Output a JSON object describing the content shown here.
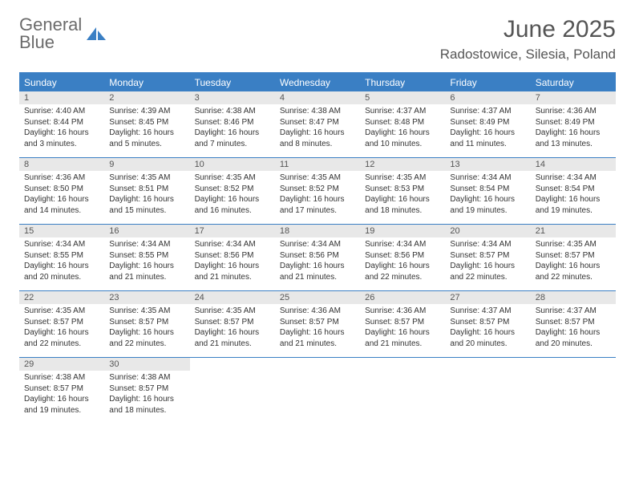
{
  "logo": {
    "word1": "General",
    "word2": "Blue",
    "word1_color": "#6b6b6b",
    "word2_color": "#3a7fc4",
    "icon_color": "#3a7fc4"
  },
  "title": "June 2025",
  "subtitle": "Radostowice, Silesia, Poland",
  "colors": {
    "header_bg": "#3a7fc4",
    "header_text": "#ffffff",
    "daynum_bg": "#e8e8e8",
    "daynum_text": "#555555",
    "body_text": "#333333",
    "border": "#3a7fc4",
    "page_bg": "#ffffff"
  },
  "day_headers": [
    "Sunday",
    "Monday",
    "Tuesday",
    "Wednesday",
    "Thursday",
    "Friday",
    "Saturday"
  ],
  "weeks": [
    [
      {
        "n": "1",
        "sr": "Sunrise: 4:40 AM",
        "ss": "Sunset: 8:44 PM",
        "dl": "Daylight: 16 hours and 3 minutes."
      },
      {
        "n": "2",
        "sr": "Sunrise: 4:39 AM",
        "ss": "Sunset: 8:45 PM",
        "dl": "Daylight: 16 hours and 5 minutes."
      },
      {
        "n": "3",
        "sr": "Sunrise: 4:38 AM",
        "ss": "Sunset: 8:46 PM",
        "dl": "Daylight: 16 hours and 7 minutes."
      },
      {
        "n": "4",
        "sr": "Sunrise: 4:38 AM",
        "ss": "Sunset: 8:47 PM",
        "dl": "Daylight: 16 hours and 8 minutes."
      },
      {
        "n": "5",
        "sr": "Sunrise: 4:37 AM",
        "ss": "Sunset: 8:48 PM",
        "dl": "Daylight: 16 hours and 10 minutes."
      },
      {
        "n": "6",
        "sr": "Sunrise: 4:37 AM",
        "ss": "Sunset: 8:49 PM",
        "dl": "Daylight: 16 hours and 11 minutes."
      },
      {
        "n": "7",
        "sr": "Sunrise: 4:36 AM",
        "ss": "Sunset: 8:49 PM",
        "dl": "Daylight: 16 hours and 13 minutes."
      }
    ],
    [
      {
        "n": "8",
        "sr": "Sunrise: 4:36 AM",
        "ss": "Sunset: 8:50 PM",
        "dl": "Daylight: 16 hours and 14 minutes."
      },
      {
        "n": "9",
        "sr": "Sunrise: 4:35 AM",
        "ss": "Sunset: 8:51 PM",
        "dl": "Daylight: 16 hours and 15 minutes."
      },
      {
        "n": "10",
        "sr": "Sunrise: 4:35 AM",
        "ss": "Sunset: 8:52 PM",
        "dl": "Daylight: 16 hours and 16 minutes."
      },
      {
        "n": "11",
        "sr": "Sunrise: 4:35 AM",
        "ss": "Sunset: 8:52 PM",
        "dl": "Daylight: 16 hours and 17 minutes."
      },
      {
        "n": "12",
        "sr": "Sunrise: 4:35 AM",
        "ss": "Sunset: 8:53 PM",
        "dl": "Daylight: 16 hours and 18 minutes."
      },
      {
        "n": "13",
        "sr": "Sunrise: 4:34 AM",
        "ss": "Sunset: 8:54 PM",
        "dl": "Daylight: 16 hours and 19 minutes."
      },
      {
        "n": "14",
        "sr": "Sunrise: 4:34 AM",
        "ss": "Sunset: 8:54 PM",
        "dl": "Daylight: 16 hours and 19 minutes."
      }
    ],
    [
      {
        "n": "15",
        "sr": "Sunrise: 4:34 AM",
        "ss": "Sunset: 8:55 PM",
        "dl": "Daylight: 16 hours and 20 minutes."
      },
      {
        "n": "16",
        "sr": "Sunrise: 4:34 AM",
        "ss": "Sunset: 8:55 PM",
        "dl": "Daylight: 16 hours and 21 minutes."
      },
      {
        "n": "17",
        "sr": "Sunrise: 4:34 AM",
        "ss": "Sunset: 8:56 PM",
        "dl": "Daylight: 16 hours and 21 minutes."
      },
      {
        "n": "18",
        "sr": "Sunrise: 4:34 AM",
        "ss": "Sunset: 8:56 PM",
        "dl": "Daylight: 16 hours and 21 minutes."
      },
      {
        "n": "19",
        "sr": "Sunrise: 4:34 AM",
        "ss": "Sunset: 8:56 PM",
        "dl": "Daylight: 16 hours and 22 minutes."
      },
      {
        "n": "20",
        "sr": "Sunrise: 4:34 AM",
        "ss": "Sunset: 8:57 PM",
        "dl": "Daylight: 16 hours and 22 minutes."
      },
      {
        "n": "21",
        "sr": "Sunrise: 4:35 AM",
        "ss": "Sunset: 8:57 PM",
        "dl": "Daylight: 16 hours and 22 minutes."
      }
    ],
    [
      {
        "n": "22",
        "sr": "Sunrise: 4:35 AM",
        "ss": "Sunset: 8:57 PM",
        "dl": "Daylight: 16 hours and 22 minutes."
      },
      {
        "n": "23",
        "sr": "Sunrise: 4:35 AM",
        "ss": "Sunset: 8:57 PM",
        "dl": "Daylight: 16 hours and 22 minutes."
      },
      {
        "n": "24",
        "sr": "Sunrise: 4:35 AM",
        "ss": "Sunset: 8:57 PM",
        "dl": "Daylight: 16 hours and 21 minutes."
      },
      {
        "n": "25",
        "sr": "Sunrise: 4:36 AM",
        "ss": "Sunset: 8:57 PM",
        "dl": "Daylight: 16 hours and 21 minutes."
      },
      {
        "n": "26",
        "sr": "Sunrise: 4:36 AM",
        "ss": "Sunset: 8:57 PM",
        "dl": "Daylight: 16 hours and 21 minutes."
      },
      {
        "n": "27",
        "sr": "Sunrise: 4:37 AM",
        "ss": "Sunset: 8:57 PM",
        "dl": "Daylight: 16 hours and 20 minutes."
      },
      {
        "n": "28",
        "sr": "Sunrise: 4:37 AM",
        "ss": "Sunset: 8:57 PM",
        "dl": "Daylight: 16 hours and 20 minutes."
      }
    ],
    [
      {
        "n": "29",
        "sr": "Sunrise: 4:38 AM",
        "ss": "Sunset: 8:57 PM",
        "dl": "Daylight: 16 hours and 19 minutes."
      },
      {
        "n": "30",
        "sr": "Sunrise: 4:38 AM",
        "ss": "Sunset: 8:57 PM",
        "dl": "Daylight: 16 hours and 18 minutes."
      },
      null,
      null,
      null,
      null,
      null
    ]
  ]
}
